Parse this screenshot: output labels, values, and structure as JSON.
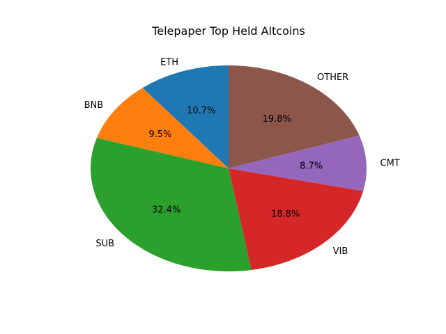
{
  "chart_data": {
    "type": "pie",
    "title": "Telepaper Top Held Altcoins",
    "categories": [
      "ETH",
      "BNB",
      "SUB",
      "VIB",
      "CMT",
      "OTHER"
    ],
    "values": [
      10.7,
      9.5,
      32.4,
      18.8,
      8.7,
      19.8
    ],
    "value_labels": [
      "10.7%",
      "9.5%",
      "32.4%",
      "18.8%",
      "8.7%",
      "19.8%"
    ],
    "colors": [
      "#1f77b4",
      "#ff7f0e",
      "#2ca02c",
      "#d62728",
      "#9467bd",
      "#8c564b"
    ],
    "start_angle_deg": 90,
    "direction": "counterclockwise",
    "legend": "none"
  }
}
